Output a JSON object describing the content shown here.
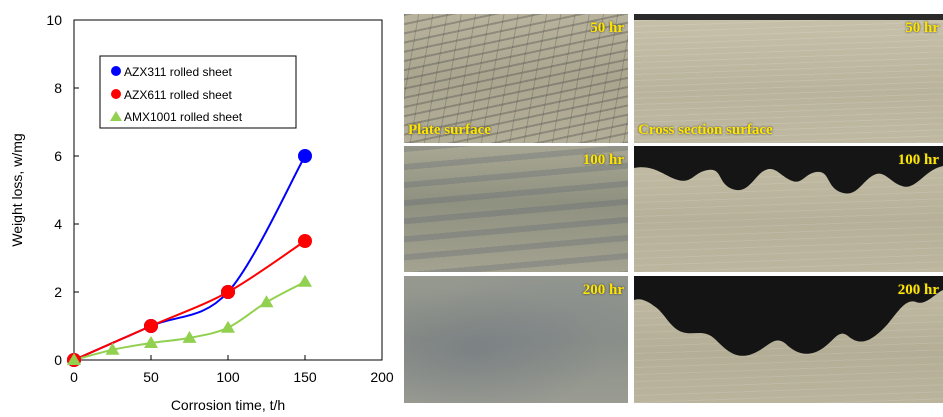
{
  "chart_data": {
    "type": "scatter",
    "title": "",
    "xlabel": "Corrosion time, t/h",
    "ylabel": "Weight loss, w/mg",
    "xlim": [
      0,
      200
    ],
    "ylim": [
      0,
      10
    ],
    "xticks": [
      0,
      50,
      100,
      150,
      200
    ],
    "yticks": [
      0,
      2,
      4,
      6,
      8,
      10
    ],
    "grid": false,
    "legend_position": "top-left",
    "series": [
      {
        "name": "AZX311 rolled sheet",
        "marker": "circle",
        "color": "#0000ff",
        "points": [
          [
            0,
            0
          ],
          [
            50,
            1.0
          ],
          [
            100,
            2.0
          ],
          [
            150,
            6.0
          ]
        ]
      },
      {
        "name": "AZX611 rolled sheet",
        "marker": "circle",
        "color": "#ff0000",
        "points": [
          [
            0,
            0
          ],
          [
            50,
            1.0
          ],
          [
            100,
            2.0
          ],
          [
            150,
            3.5
          ]
        ]
      },
      {
        "name": "AMX1001 rolled sheet",
        "marker": "triangle",
        "color": "#92d050",
        "points": [
          [
            0,
            0
          ],
          [
            25,
            0.3
          ],
          [
            50,
            0.5
          ],
          [
            75,
            0.65
          ],
          [
            100,
            0.95
          ],
          [
            125,
            1.7
          ],
          [
            150,
            2.3
          ]
        ]
      }
    ]
  },
  "micrographs": {
    "plate_surface_label": "Plate surface",
    "cross_section_label": "Cross section surface",
    "rows": [
      {
        "time_label": "50 hr"
      },
      {
        "time_label": "100 hr"
      },
      {
        "time_label": "200 hr"
      }
    ]
  }
}
